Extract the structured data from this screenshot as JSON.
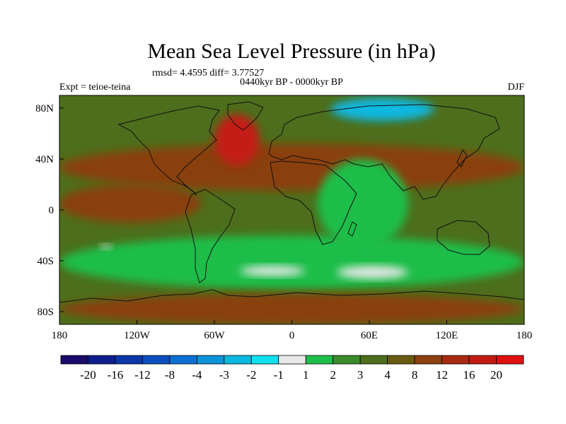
{
  "chart_data": {
    "type": "heatmap",
    "title": "Mean Sea Level Pressure (in hPa)",
    "stats_text": "rmsd= 4.4595 diff= 3.77527",
    "period_label": "0440kyr BP - 0000kyr BP",
    "expt_label": "Expt = teioe-teina",
    "season_label": "DJF",
    "x_range": [
      -180,
      180
    ],
    "y_range": [
      -90,
      90
    ],
    "x_ticks": [
      {
        "value": -180,
        "label": "180"
      },
      {
        "value": -120,
        "label": "120W"
      },
      {
        "value": -60,
        "label": "60W"
      },
      {
        "value": 0,
        "label": "0"
      },
      {
        "value": 60,
        "label": "60E"
      },
      {
        "value": 120,
        "label": "120E"
      },
      {
        "value": 180,
        "label": "180"
      }
    ],
    "y_ticks": [
      {
        "value": 80,
        "label": "80N"
      },
      {
        "value": 40,
        "label": "40N"
      },
      {
        "value": 0,
        "label": "0"
      },
      {
        "value": -40,
        "label": "40S"
      },
      {
        "value": -80,
        "label": "80S"
      }
    ],
    "colorbar": {
      "levels": [
        "-20",
        "-16",
        "-12",
        "-8",
        "-4",
        "-3",
        "-2",
        "-1",
        "1",
        "2",
        "3",
        "4",
        "8",
        "12",
        "16",
        "20"
      ],
      "colors": [
        "#1d0a6b",
        "#0d1e8c",
        "#0a36a8",
        "#0a4fbf",
        "#0d6fd1",
        "#0b93d8",
        "#0bb8e0",
        "#10e0f0",
        "#e8e8e8",
        "#1ebe4a",
        "#3a8c2a",
        "#4d6e1c",
        "#6a5a10",
        "#8a4010",
        "#a82a10",
        "#c41a12",
        "#e01010"
      ]
    },
    "regions": [
      {
        "name": "background-level-3-4",
        "level_index": 11,
        "lon_min": -180,
        "lon_max": 180,
        "lat_min": -90,
        "lat_max": 90
      },
      {
        "name": "north-band-8-12",
        "level_index": 13,
        "lon_min": -180,
        "lon_max": 180,
        "lat_min": 15,
        "lat_max": 52
      },
      {
        "name": "pacific-south-8-12",
        "level_index": 13,
        "lon_min": -180,
        "lon_max": -70,
        "lat_min": -10,
        "lat_max": 20
      },
      {
        "name": "south-ocean-green",
        "level_index": 9,
        "lon_min": -180,
        "lon_max": 180,
        "lat_min": -62,
        "lat_max": -20
      },
      {
        "name": "antarctica-8-12",
        "level_index": 13,
        "lon_min": -180,
        "lon_max": 180,
        "lat_min": -90,
        "lat_max": -66
      },
      {
        "name": "north-atlantic-high",
        "level_index": 15,
        "lon_min": -60,
        "lon_max": -25,
        "lat_min": 35,
        "lat_max": 75
      },
      {
        "name": "siberia-low",
        "level_index": 6,
        "lon_min": 30,
        "lon_max": 110,
        "lat_min": 70,
        "lat_max": 88
      },
      {
        "name": "south-atlantic-min",
        "level_index": 8,
        "lon_min": -40,
        "lon_max": 10,
        "lat_min": -52,
        "lat_max": -44
      },
      {
        "name": "indian-ocean-min",
        "level_index": 8,
        "lon_min": 35,
        "lon_max": 90,
        "lat_min": -54,
        "lat_max": -44
      },
      {
        "name": "india-green",
        "level_index": 9,
        "lon_min": 20,
        "lon_max": 90,
        "lat_min": -30,
        "lat_max": 40
      },
      {
        "name": "pacific-south-min",
        "level_index": 8,
        "lon_min": -148,
        "lon_max": -140,
        "lat_min": -31,
        "lat_max": -27
      }
    ]
  }
}
